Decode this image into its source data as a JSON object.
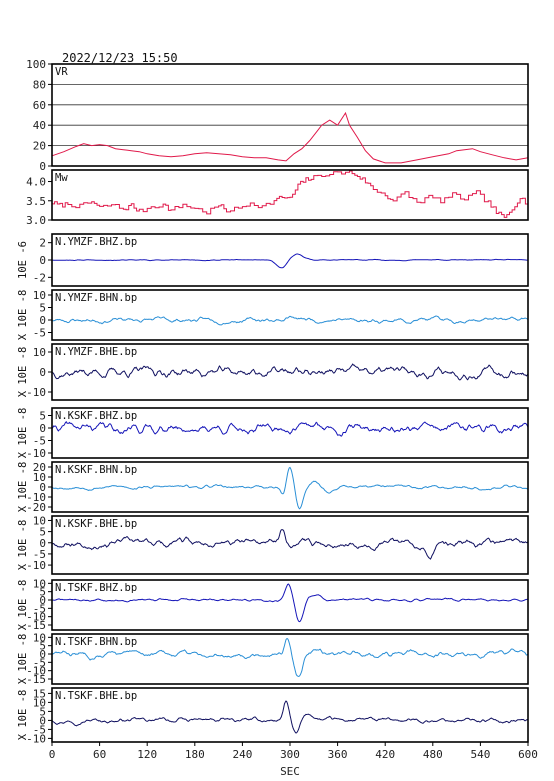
{
  "timestamp": "2022/12/23 15:50",
  "chart_data": {
    "type": "line",
    "xlabel": "SEC",
    "xlim": [
      0,
      600
    ],
    "xticks": [
      "0",
      "60",
      "120",
      "180",
      "240",
      "300",
      "360",
      "420",
      "480",
      "540",
      "600"
    ],
    "panels": [
      {
        "id": "vr",
        "label": "VR",
        "color": "#e0194a",
        "grid": true,
        "style": "line",
        "ylim": [
          0,
          100
        ],
        "yticks": [
          "0",
          "20",
          "40",
          "60",
          "80",
          "100"
        ],
        "ylabel": "",
        "x": [
          0,
          15,
          30,
          40,
          50,
          60,
          70,
          80,
          90,
          100,
          110,
          120,
          135,
          150,
          165,
          180,
          195,
          210,
          225,
          240,
          255,
          270,
          285,
          295,
          305,
          315,
          325,
          335,
          340,
          350,
          360,
          370,
          375,
          385,
          395,
          405,
          420,
          440,
          460,
          480,
          500,
          510,
          520,
          530,
          540,
          555,
          570,
          585,
          600
        ],
        "y": [
          10,
          14,
          19,
          22,
          20,
          21,
          20,
          17,
          16,
          15,
          14,
          12,
          10,
          9,
          10,
          12,
          13,
          12,
          11,
          9,
          8,
          8,
          6,
          5,
          12,
          17,
          25,
          35,
          40,
          45,
          40,
          52,
          40,
          28,
          15,
          7,
          3,
          3,
          6,
          9,
          12,
          15,
          16,
          17,
          14,
          11,
          8,
          6,
          8
        ]
      },
      {
        "id": "mw",
        "label": "Mw",
        "color": "#e0194a",
        "grid": false,
        "style": "step",
        "ylim": [
          3.0,
          4.3
        ],
        "yticks": [
          "3.0",
          "3.5",
          "4.0"
        ],
        "ylabel": "",
        "x": [
          0,
          10,
          20,
          35,
          50,
          60,
          75,
          90,
          100,
          110,
          125,
          140,
          150,
          165,
          180,
          195,
          210,
          220,
          235,
          250,
          265,
          280,
          290,
          300,
          310,
          320,
          330,
          345,
          360,
          375,
          385,
          395,
          405,
          420,
          430,
          445,
          460,
          475,
          490,
          505,
          520,
          535,
          550,
          560,
          570,
          580,
          590,
          600
        ],
        "y": [
          3.45,
          3.38,
          3.42,
          3.35,
          3.48,
          3.32,
          3.4,
          3.28,
          3.38,
          3.22,
          3.35,
          3.4,
          3.25,
          3.4,
          3.3,
          3.2,
          3.38,
          3.25,
          3.3,
          3.45,
          3.35,
          3.5,
          3.6,
          3.55,
          3.9,
          4.05,
          4.1,
          4.2,
          4.22,
          4.25,
          4.15,
          4.0,
          3.8,
          3.65,
          3.5,
          3.7,
          3.45,
          3.6,
          3.5,
          3.65,
          3.55,
          3.7,
          3.45,
          3.2,
          3.05,
          3.3,
          3.6,
          3.4
        ]
      },
      {
        "id": "ymzf-bhz",
        "label": "N.YMZF.BHZ.bp",
        "color": "#1515b8",
        "grid": false,
        "style": "wave",
        "ylim": [
          -3,
          3
        ],
        "yticks": [
          "-2",
          "0",
          "2"
        ],
        "ylabel": "10E -6",
        "noise": 0.05,
        "seed": 11,
        "events": [
          {
            "t": 290,
            "amp": -1.0,
            "width": 10
          },
          {
            "t": 308,
            "amp": 0.7,
            "width": 12
          }
        ]
      },
      {
        "id": "ymzf-bhn",
        "label": "N.YMZF.BHN.bp",
        "color": "#2a8fd6",
        "grid": false,
        "style": "wave",
        "ylim": [
          -8,
          12
        ],
        "yticks": [
          "-5",
          "0",
          "5",
          "10"
        ],
        "ylabel": "X 10E -8",
        "noise": 1.0,
        "seed": 23,
        "events": [
          {
            "t": 300,
            "amp": 1.5,
            "width": 6
          }
        ]
      },
      {
        "id": "ymzf-bhe",
        "label": "N.YMZF.BHE.bp",
        "color": "#101060",
        "grid": false,
        "style": "wave",
        "ylim": [
          -14,
          14
        ],
        "yticks": [
          "-10",
          "0",
          "10"
        ],
        "ylabel": "X 10E -8",
        "noise": 2.5,
        "seed": 37,
        "events": []
      },
      {
        "id": "kskf-bhz",
        "label": "N.KSKF.BHZ.bp",
        "color": "#1515b8",
        "grid": false,
        "style": "wave",
        "ylim": [
          -12,
          8
        ],
        "yticks": [
          "-10",
          "-5",
          "0",
          "5"
        ],
        "ylabel": "X 10E -8",
        "noise": 2.0,
        "seed": 41,
        "events": []
      },
      {
        "id": "kskf-bhn",
        "label": "N.KSKF.BHN.bp",
        "color": "#2a8fd6",
        "grid": false,
        "style": "wave",
        "ylim": [
          -25,
          25
        ],
        "yticks": [
          "-20",
          "-10",
          "0",
          "10",
          "20"
        ],
        "ylabel": "X 10E -8",
        "noise": 1.8,
        "seed": 53,
        "events": [
          {
            "t": 292,
            "amp": -10,
            "width": 5
          },
          {
            "t": 300,
            "amp": 22,
            "width": 6
          },
          {
            "t": 312,
            "amp": -22,
            "width": 7
          },
          {
            "t": 330,
            "amp": 6,
            "width": 12
          },
          {
            "t": 350,
            "amp": -5,
            "width": 12
          }
        ]
      },
      {
        "id": "kskf-bhe",
        "label": "N.KSKF.BHE.bp",
        "color": "#101060",
        "grid": false,
        "style": "wave",
        "ylim": [
          -14,
          12
        ],
        "yticks": [
          "-10",
          "-5",
          "0",
          "5",
          "10"
        ],
        "ylabel": "X 10E -8",
        "noise": 1.8,
        "seed": 67,
        "events": [
          {
            "t": 290,
            "amp": 6,
            "width": 5
          },
          {
            "t": 478,
            "amp": -4,
            "width": 8
          }
        ]
      },
      {
        "id": "tskf-bhz",
        "label": "N.TSKF.BHZ.bp",
        "color": "#1515b8",
        "grid": false,
        "style": "wave",
        "ylim": [
          -18,
          12
        ],
        "yticks": [
          "-15",
          "-10",
          "-5",
          "0",
          "5",
          "10"
        ],
        "ylabel": "X 10E -8",
        "noise": 0.8,
        "seed": 71,
        "events": [
          {
            "t": 298,
            "amp": 10,
            "width": 6
          },
          {
            "t": 312,
            "amp": -14,
            "width": 7
          },
          {
            "t": 330,
            "amp": 3,
            "width": 12
          }
        ]
      },
      {
        "id": "tskf-bhn",
        "label": "N.TSKF.BHN.bp",
        "color": "#2a8fd6",
        "grid": false,
        "style": "wave",
        "ylim": [
          -18,
          12
        ],
        "yticks": [
          "-15",
          "-10",
          "-5",
          "0",
          "5",
          "10"
        ],
        "ylabel": "X 10E -8",
        "noise": 1.8,
        "seed": 83,
        "events": [
          {
            "t": 297,
            "amp": 10,
            "width": 5
          },
          {
            "t": 310,
            "amp": -14,
            "width": 7
          },
          {
            "t": 330,
            "amp": 4,
            "width": 12
          }
        ]
      },
      {
        "id": "tskf-bhe",
        "label": "N.TSKF.BHE.bp",
        "color": "#101060",
        "grid": false,
        "style": "wave",
        "ylim": [
          -12,
          18
        ],
        "yticks": [
          "-10",
          "-5",
          "0",
          "5",
          "10",
          "15"
        ],
        "ylabel": "X 10E -8",
        "noise": 1.3,
        "seed": 97,
        "events": [
          {
            "t": 295,
            "amp": 10,
            "width": 5
          },
          {
            "t": 308,
            "amp": -8,
            "width": 6
          },
          {
            "t": 325,
            "amp": 3,
            "width": 10
          }
        ]
      }
    ]
  }
}
